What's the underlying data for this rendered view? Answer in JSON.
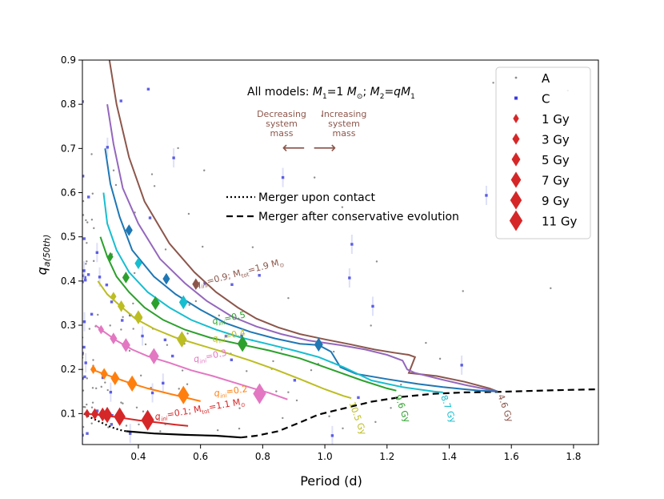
{
  "chart_data": {
    "type": "line",
    "title": "",
    "xlabel": "Period (d)",
    "ylabel_main": "q",
    "ylabel_sub": "a(50th)",
    "xlim": [
      0.22,
      1.88
    ],
    "ylim": [
      0.03,
      0.9
    ],
    "xticks": [
      0.4,
      0.6,
      0.8,
      1.0,
      1.2,
      1.4,
      1.6,
      1.8
    ],
    "xtick_labels": [
      "0.4",
      "0.6",
      "0.8",
      "1.0",
      "1.2",
      "1.4",
      "1.6",
      "1.8"
    ],
    "yticks": [
      0.1,
      0.2,
      0.3,
      0.4,
      0.5,
      0.6,
      0.7,
      0.8,
      0.9
    ],
    "ytick_labels": [
      "0.1",
      "0.2",
      "0.3",
      "0.4",
      "0.5",
      "0.6",
      "0.7",
      "0.8",
      "0.9"
    ],
    "colors": {
      "A": "#8c8c8c",
      "C": "#3a3ae0",
      "marker": "#d62728",
      "annotation": "#8c564b",
      "merger": "#000000"
    },
    "models_label": {
      "prefix": "All models: ",
      "M1": "M",
      "M1_sub": "1",
      "eq1": "=1 ",
      "M1_unit": "M",
      "M1_unit_sub": "⊙",
      "sep": "; ",
      "M2": "M",
      "M2_sub": "2",
      "eq2": "=",
      "q": "q",
      "M2b": "M",
      "M2b_sub": "1"
    },
    "arrows": {
      "left_lines": [
        "Decreasing",
        "system",
        "mass"
      ],
      "right_lines": [
        "Increasing",
        "system",
        "mass"
      ],
      "left_glyph": "⟵",
      "right_glyph": "⟶"
    },
    "merger_legend": [
      {
        "label": "Merger upon contact",
        "style": "dotted"
      },
      {
        "label": "Merger after conservative evolution",
        "style": "dashed"
      }
    ],
    "legend": {
      "position": "top-right",
      "entries": [
        {
          "label": "A",
          "kind": "dot"
        },
        {
          "label": "C",
          "kind": "square"
        },
        {
          "label": "1 Gy",
          "kind": "diamond",
          "size": 1
        },
        {
          "label": "3 Gy",
          "kind": "diamond",
          "size": 3
        },
        {
          "label": "5 Gy",
          "kind": "diamond",
          "size": 5
        },
        {
          "label": "7 Gy",
          "kind": "diamond",
          "size": 7
        },
        {
          "label": "9 Gy",
          "kind": "diamond",
          "size": 9
        },
        {
          "label": "11 Gy",
          "kind": "diamond",
          "size": 11
        }
      ]
    },
    "series": [
      {
        "name": "q_ini=0.9",
        "color": "#8c564b",
        "x": [
          0.307,
          0.33,
          0.37,
          0.42,
          0.5,
          0.58,
          0.65,
          0.72,
          0.78,
          0.85,
          0.92,
          1.0,
          1.08,
          1.16,
          1.22,
          1.27,
          1.29,
          1.27,
          1.36,
          1.45,
          1.53,
          1.556
        ],
        "y": [
          0.9,
          0.8,
          0.68,
          0.58,
          0.485,
          0.42,
          0.375,
          0.34,
          0.315,
          0.295,
          0.28,
          0.268,
          0.257,
          0.245,
          0.238,
          0.233,
          0.228,
          0.192,
          0.185,
          0.172,
          0.157,
          0.15
        ],
        "diamonds": [
          {
            "x": 0.585,
            "y": 0.393,
            "size": 3
          }
        ]
      },
      {
        "name": "q_ini=0.8",
        "color": "#9467bd",
        "x": [
          0.3,
          0.32,
          0.35,
          0.4,
          0.47,
          0.55,
          0.62,
          0.7,
          0.78,
          0.86,
          0.95,
          1.05,
          1.13,
          1.2,
          1.25,
          1.265,
          1.29,
          1.37,
          1.45,
          1.52,
          1.556
        ],
        "y": [
          0.8,
          0.71,
          0.61,
          0.53,
          0.45,
          0.395,
          0.355,
          0.32,
          0.297,
          0.28,
          0.265,
          0.255,
          0.245,
          0.233,
          0.22,
          0.2,
          0.192,
          0.178,
          0.165,
          0.155,
          0.15
        ]
      },
      {
        "name": "q_ini=0.7",
        "color": "#1f77b4",
        "x": [
          0.293,
          0.31,
          0.34,
          0.38,
          0.45,
          0.52,
          0.6,
          0.68,
          0.76,
          0.84,
          0.92,
          0.98,
          1.02,
          1.05,
          1.1,
          1.2,
          1.3,
          1.38,
          1.45,
          1.5,
          1.556
        ],
        "y": [
          0.7,
          0.62,
          0.545,
          0.47,
          0.41,
          0.37,
          0.335,
          0.305,
          0.285,
          0.27,
          0.258,
          0.255,
          0.24,
          0.205,
          0.19,
          0.178,
          0.167,
          0.16,
          0.155,
          0.152,
          0.15
        ],
        "diamonds": [
          {
            "x": 0.37,
            "y": 0.515,
            "size": 3
          },
          {
            "x": 0.49,
            "y": 0.405,
            "size": 3
          },
          {
            "x": 0.98,
            "y": 0.256,
            "size": 5
          }
        ]
      },
      {
        "name": "q_ini=0.6",
        "color": "#17becf",
        "x": [
          0.288,
          0.3,
          0.33,
          0.37,
          0.43,
          0.5,
          0.57,
          0.65,
          0.73,
          0.82,
          0.9,
          0.98,
          1.06,
          1.15,
          1.25,
          1.35,
          1.38
        ],
        "y": [
          0.6,
          0.53,
          0.47,
          0.42,
          0.375,
          0.34,
          0.312,
          0.29,
          0.272,
          0.257,
          0.243,
          0.228,
          0.205,
          0.175,
          0.16,
          0.15,
          0.148
        ],
        "diamonds": [
          {
            "x": 0.4,
            "y": 0.44,
            "size": 3
          },
          {
            "x": 0.545,
            "y": 0.352,
            "size": 5
          }
        ]
      },
      {
        "name": "q_ini=0.5",
        "color": "#2ca02c",
        "x": [
          0.278,
          0.3,
          0.33,
          0.37,
          0.42,
          0.48,
          0.55,
          0.63,
          0.72,
          0.82,
          0.92,
          1.02,
          1.12,
          1.2,
          1.23
        ],
        "y": [
          0.5,
          0.455,
          0.41,
          0.375,
          0.34,
          0.312,
          0.29,
          0.272,
          0.258,
          0.243,
          0.225,
          0.2,
          0.175,
          0.157,
          0.152
        ],
        "diamonds": [
          {
            "x": 0.31,
            "y": 0.455,
            "size": 1
          },
          {
            "x": 0.36,
            "y": 0.408,
            "size": 3
          },
          {
            "x": 0.455,
            "y": 0.35,
            "size": 5
          },
          {
            "x": 0.735,
            "y": 0.258,
            "size": 7
          }
        ]
      },
      {
        "name": "q_ini=0.4",
        "color": "#bcbd22",
        "x": [
          0.27,
          0.3,
          0.34,
          0.39,
          0.45,
          0.52,
          0.6,
          0.68,
          0.76,
          0.84,
          0.92,
          1.0,
          1.06,
          1.085
        ],
        "y": [
          0.4,
          0.37,
          0.345,
          0.315,
          0.292,
          0.272,
          0.255,
          0.238,
          0.22,
          0.2,
          0.178,
          0.155,
          0.14,
          0.135
        ],
        "diamonds": [
          {
            "x": 0.32,
            "y": 0.365,
            "size": 1
          },
          {
            "x": 0.345,
            "y": 0.343,
            "size": 3
          },
          {
            "x": 0.4,
            "y": 0.318,
            "size": 5
          },
          {
            "x": 0.54,
            "y": 0.268,
            "size": 7
          }
        ]
      },
      {
        "name": "q_ini=0.3",
        "color": "#e377c2",
        "x": [
          0.262,
          0.29,
          0.33,
          0.38,
          0.43,
          0.5,
          0.57,
          0.64,
          0.71,
          0.77,
          0.82,
          0.88
        ],
        "y": [
          0.3,
          0.285,
          0.265,
          0.245,
          0.23,
          0.215,
          0.198,
          0.185,
          0.17,
          0.157,
          0.147,
          0.132
        ],
        "diamonds": [
          {
            "x": 0.28,
            "y": 0.29,
            "size": 1
          },
          {
            "x": 0.32,
            "y": 0.27,
            "size": 3
          },
          {
            "x": 0.36,
            "y": 0.255,
            "size": 5
          },
          {
            "x": 0.45,
            "y": 0.23,
            "size": 7
          },
          {
            "x": 0.79,
            "y": 0.145,
            "size": 11
          }
        ]
      },
      {
        "name": "q_ini=0.2",
        "color": "#ff7f0e",
        "x": [
          0.25,
          0.28,
          0.32,
          0.37,
          0.43,
          0.5,
          0.56,
          0.6
        ],
        "y": [
          0.2,
          0.192,
          0.182,
          0.17,
          0.157,
          0.145,
          0.135,
          0.128
        ],
        "diamonds": [
          {
            "x": 0.255,
            "y": 0.2,
            "size": 1
          },
          {
            "x": 0.29,
            "y": 0.19,
            "size": 3
          },
          {
            "x": 0.325,
            "y": 0.18,
            "size": 5
          },
          {
            "x": 0.38,
            "y": 0.168,
            "size": 7
          },
          {
            "x": 0.545,
            "y": 0.142,
            "size": 9
          }
        ]
      },
      {
        "name": "q_ini=0.1",
        "color": "#d62728",
        "x": [
          0.225,
          0.26,
          0.3,
          0.35,
          0.4,
          0.46,
          0.52,
          0.56
        ],
        "y": [
          0.1,
          0.098,
          0.095,
          0.09,
          0.085,
          0.08,
          0.075,
          0.072
        ],
        "diamonds": [
          {
            "x": 0.235,
            "y": 0.1,
            "size": 1
          },
          {
            "x": 0.26,
            "y": 0.099,
            "size": 3
          },
          {
            "x": 0.285,
            "y": 0.098,
            "size": 5
          },
          {
            "x": 0.3,
            "y": 0.097,
            "size": 7
          },
          {
            "x": 0.34,
            "y": 0.093,
            "size": 9
          },
          {
            "x": 0.43,
            "y": 0.085,
            "size": 11
          }
        ]
      }
    ],
    "merger_contact": {
      "x": [
        0.225,
        0.25,
        0.28,
        0.31,
        0.34,
        0.36
      ],
      "y": [
        0.1,
        0.09,
        0.08,
        0.07,
        0.063,
        0.06
      ]
    },
    "merger_bridge": {
      "x": [
        0.36,
        0.45,
        0.55,
        0.65,
        0.73
      ],
      "y": [
        0.06,
        0.055,
        0.052,
        0.05,
        0.046
      ]
    },
    "merger_conservative": {
      "x": [
        0.73,
        0.78,
        0.85,
        0.92,
        0.98,
        1.05,
        1.15,
        1.25,
        1.35,
        1.45,
        1.55,
        1.65,
        1.75,
        1.88
      ],
      "y": [
        0.046,
        0.05,
        0.06,
        0.08,
        0.098,
        0.11,
        0.127,
        0.138,
        0.145,
        0.148,
        0.149,
        0.151,
        0.153,
        0.155
      ]
    },
    "curve_labels": [
      {
        "x": 0.585,
        "y": 0.385,
        "rot": -15,
        "color": "#8c564b",
        "q": "q",
        "sub": "ini",
        "rest": "=0.9; M",
        "sub2": "tot",
        "rest2": "=1.9 M",
        "sub3": "⊙"
      },
      {
        "x": 0.64,
        "y": 0.302,
        "rot": -12,
        "color": "#2ca02c",
        "q": "q",
        "sub": "ini",
        "rest": "=0.5"
      },
      {
        "x": 0.64,
        "y": 0.262,
        "rot": -12,
        "color": "#bcbd22",
        "q": "q",
        "sub": "ini",
        "rest": "=0.4"
      },
      {
        "x": 0.58,
        "y": 0.216,
        "rot": -12,
        "color": "#e377c2",
        "q": "q",
        "sub": "ini",
        "rest": "=0.3"
      },
      {
        "x": 0.645,
        "y": 0.139,
        "rot": -8,
        "color": "#ff7f0e",
        "q": "q",
        "sub": "ini",
        "rest": "=0.2"
      },
      {
        "x": 0.455,
        "y": 0.086,
        "rot": -10,
        "color": "#d62728",
        "q": "q",
        "sub": "ini",
        "rest": "=0.1; M",
        "sub2": "tot",
        "rest2": "=1.1 M",
        "sub3": "⊙"
      }
    ],
    "age_labels": [
      {
        "text": "10.5 Gy",
        "x": 1.078,
        "y": 0.131,
        "color": "#bcbd22"
      },
      {
        "text": "9.6 Gy",
        "x": 1.225,
        "y": 0.147,
        "color": "#2ca02c"
      },
      {
        "text": "8.7 Gy",
        "x": 1.373,
        "y": 0.146,
        "color": "#17becf"
      },
      {
        "text": "4.6 Gy",
        "x": 1.556,
        "y": 0.148,
        "color": "#8c564b"
      }
    ]
  }
}
